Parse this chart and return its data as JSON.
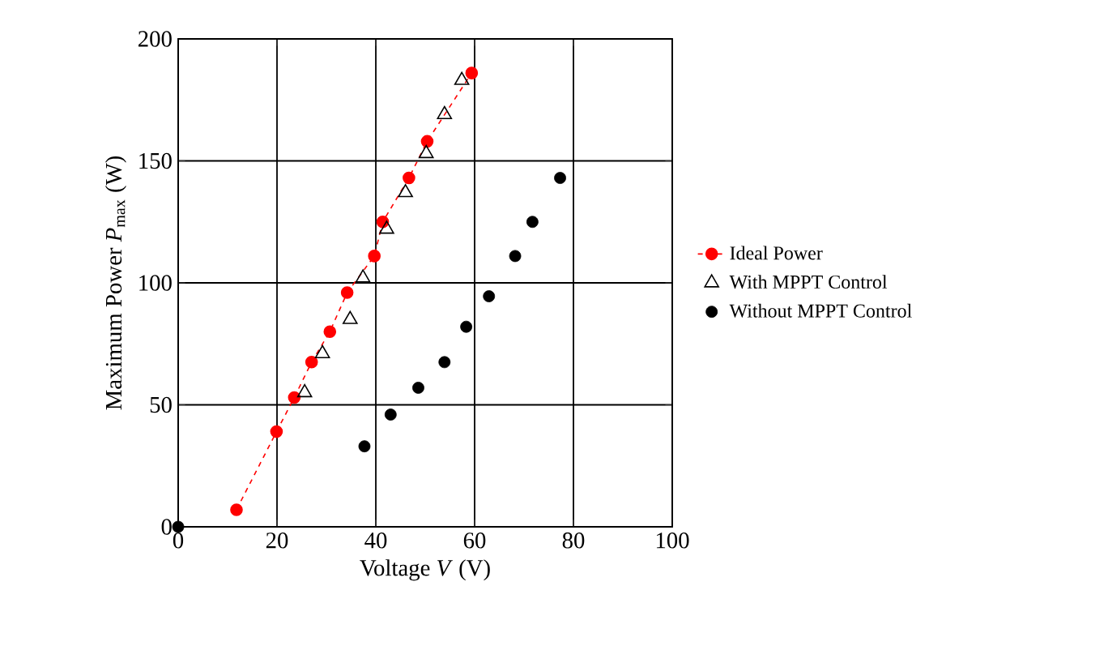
{
  "chart_data": {
    "type": "scatter",
    "xlabel": "Voltage *V* (V)",
    "ylabel": "Maximum Power *P*$_{max}$ (W)",
    "xlim": [
      0,
      100
    ],
    "ylim": [
      0,
      200
    ],
    "xticks": [
      0,
      20,
      40,
      60,
      80,
      100
    ],
    "yticks": [
      0,
      50,
      100,
      150,
      200
    ],
    "grid": true,
    "legend": "right",
    "series": [
      {
        "name": "Ideal Power",
        "type": "line",
        "color": "#ff0000",
        "marker": "circle",
        "line_style": "dashed",
        "x": [
          11.8,
          19.9,
          23.5,
          27,
          30.7,
          34.2,
          39.7,
          41.4,
          46.7,
          50.4,
          59.4
        ],
        "values": [
          7,
          39,
          53,
          67.5,
          80,
          96,
          111,
          125,
          143,
          158,
          186
        ]
      },
      {
        "name": "With MPPT Control",
        "color": "#000000",
        "marker": "triangle",
        "x": [
          25.6,
          29.2,
          34.8,
          37.4,
          42.2,
          46,
          50.2,
          53.9,
          57.4
        ],
        "values": [
          55,
          71,
          85,
          102,
          122,
          137,
          153,
          169,
          183
        ]
      },
      {
        "name": "Without  MPPT Control",
        "color": "#000000",
        "marker": "circle",
        "x": [
          0,
          37.7,
          43,
          48.6,
          53.9,
          58.3,
          62.9,
          68.2,
          71.7,
          77.3
        ],
        "values": [
          0,
          33,
          46,
          57,
          67.5,
          82,
          94.5,
          111,
          125,
          143
        ]
      }
    ]
  }
}
